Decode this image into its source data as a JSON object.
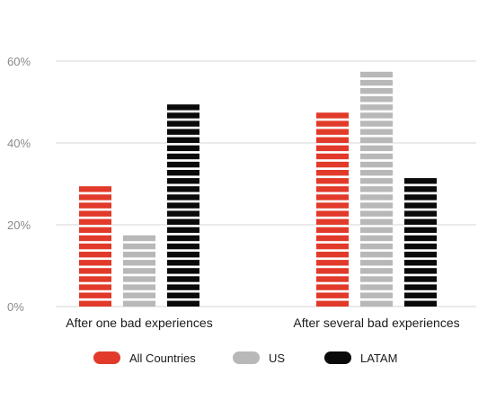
{
  "chart_data": {
    "type": "bar",
    "categories": [
      "After one bad experiences",
      "After several bad experiences"
    ],
    "series": [
      {
        "name": "All Countries",
        "values": [
          30,
          48
        ],
        "color": "#e23a2a"
      },
      {
        "name": "US",
        "values": [
          18,
          58
        ],
        "color": "#b8b8b8"
      },
      {
        "name": "LATAM",
        "values": [
          50,
          32
        ],
        "color": "#0a0a0a"
      }
    ],
    "ylim": [
      0,
      60
    ],
    "yticks": [
      0,
      20,
      40,
      60
    ],
    "ytick_labels": [
      "0%",
      "20%",
      "40%",
      "60%"
    ],
    "grid": true,
    "legend_position": "bottom"
  }
}
